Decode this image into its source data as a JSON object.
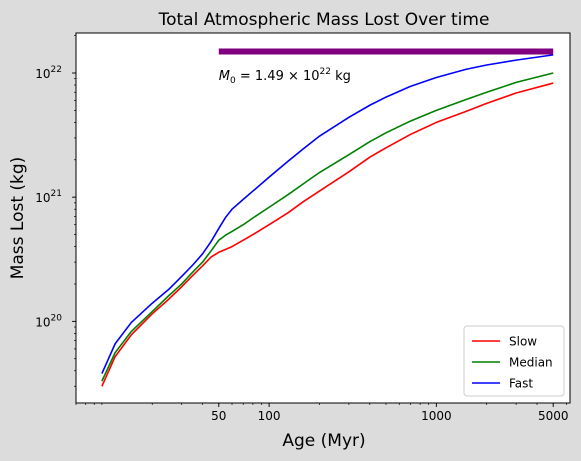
{
  "chart_data": {
    "type": "line",
    "title": "Total Atmospheric Mass Lost Over time",
    "xlabel": "Age (Myr)",
    "ylabel": "Mass Lost (kg)",
    "x_scale": "log",
    "y_scale": "log",
    "xlim": [
      7,
      6300
    ],
    "ylim": [
      2.2e+19,
      2.1e+22
    ],
    "x_ticks": [
      {
        "value": 50,
        "label": "50"
      },
      {
        "value": 100,
        "label": "100"
      },
      {
        "value": 1000,
        "label": "1000"
      },
      {
        "value": 5000,
        "label": "5000"
      }
    ],
    "y_ticks": [
      {
        "value": 1e+20,
        "base": "10",
        "exp": "20"
      },
      {
        "value": 1e+21,
        "base": "10",
        "exp": "21"
      },
      {
        "value": 1e+22,
        "base": "10",
        "exp": "22"
      }
    ],
    "grid": false,
    "legend_position": "lower-right",
    "series": [
      {
        "name": "Slow",
        "color": "#ff0000",
        "points": [
          [
            10,
            3e+19
          ],
          [
            12,
            5.2e+19
          ],
          [
            15,
            7.8e+19
          ],
          [
            20,
            1.15e+20
          ],
          [
            25,
            1.5e+20
          ],
          [
            30,
            1.9e+20
          ],
          [
            35,
            2.35e+20
          ],
          [
            40,
            2.8e+20
          ],
          [
            45,
            3.3e+20
          ],
          [
            50,
            3.6e+20
          ],
          [
            55,
            3.8e+20
          ],
          [
            60,
            4e+20
          ],
          [
            70,
            4.5e+20
          ],
          [
            80,
            5e+20
          ],
          [
            100,
            6e+20
          ],
          [
            130,
            7.5e+20
          ],
          [
            160,
            9.2e+20
          ],
          [
            200,
            1.12e+21
          ],
          [
            300,
            1.6e+21
          ],
          [
            400,
            2.1e+21
          ],
          [
            500,
            2.5e+21
          ],
          [
            700,
            3.2e+21
          ],
          [
            1000,
            4e+21
          ],
          [
            1500,
            4.9e+21
          ],
          [
            2000,
            5.7e+21
          ],
          [
            3000,
            6.9e+21
          ],
          [
            5000,
            8.3e+21
          ]
        ]
      },
      {
        "name": "Median",
        "color": "#008000",
        "points": [
          [
            10,
            3.3e+19
          ],
          [
            12,
            5.6e+19
          ],
          [
            15,
            8.3e+19
          ],
          [
            20,
            1.2e+20
          ],
          [
            25,
            1.6e+20
          ],
          [
            30,
            2e+20
          ],
          [
            35,
            2.5e+20
          ],
          [
            40,
            3e+20
          ],
          [
            45,
            3.7e+20
          ],
          [
            50,
            4.5e+20
          ],
          [
            55,
            4.95e+20
          ],
          [
            60,
            5.3e+20
          ],
          [
            70,
            6e+20
          ],
          [
            80,
            6.8e+20
          ],
          [
            100,
            8.3e+20
          ],
          [
            130,
            1.05e+21
          ],
          [
            160,
            1.28e+21
          ],
          [
            200,
            1.58e+21
          ],
          [
            300,
            2.2e+21
          ],
          [
            400,
            2.8e+21
          ],
          [
            500,
            3.3e+21
          ],
          [
            700,
            4.1e+21
          ],
          [
            1000,
            5e+21
          ],
          [
            1500,
            6.1e+21
          ],
          [
            2000,
            7e+21
          ],
          [
            3000,
            8.4e+21
          ],
          [
            5000,
            1e+22
          ]
        ]
      },
      {
        "name": "Fast",
        "color": "#0000ff",
        "points": [
          [
            10,
            3.8e+19
          ],
          [
            12,
            6.6e+19
          ],
          [
            15,
            9.8e+19
          ],
          [
            20,
            1.4e+20
          ],
          [
            25,
            1.8e+20
          ],
          [
            30,
            2.3e+20
          ],
          [
            35,
            2.85e+20
          ],
          [
            40,
            3.5e+20
          ],
          [
            45,
            4.4e+20
          ],
          [
            50,
            5.6e+20
          ],
          [
            55,
            6.9e+20
          ],
          [
            60,
            8e+20
          ],
          [
            70,
            9.6e+20
          ],
          [
            80,
            1.12e+21
          ],
          [
            100,
            1.45e+21
          ],
          [
            130,
            1.95e+21
          ],
          [
            160,
            2.45e+21
          ],
          [
            200,
            3.1e+21
          ],
          [
            300,
            4.4e+21
          ],
          [
            400,
            5.5e+21
          ],
          [
            500,
            6.4e+21
          ],
          [
            700,
            7.8e+21
          ],
          [
            1000,
            9.2e+21
          ],
          [
            1500,
            1.07e+22
          ],
          [
            2000,
            1.16e+22
          ],
          [
            3000,
            1.27e+22
          ],
          [
            5000,
            1.4e+22
          ]
        ]
      }
    ],
    "reference_line": {
      "value": 1.49e+22,
      "x_range": [
        50,
        5000
      ],
      "color": "#800080"
    },
    "annotation": {
      "x": 50,
      "y": 8.8e+21,
      "symbol": "M",
      "subscript": "0",
      "equals": " = 1.49 × 10",
      "exp": "22",
      "unit": " kg"
    }
  }
}
